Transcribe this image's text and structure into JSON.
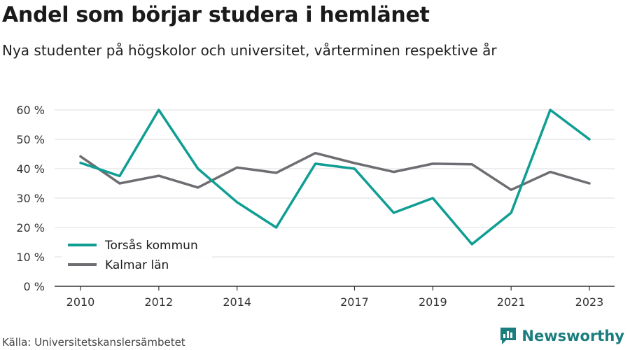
{
  "header": {
    "title": "Andel som börjar studera i hemlänet",
    "subtitle": "Nya studenter på högskolor och universitet, vårterminen respektive år"
  },
  "footer": {
    "source": "Källa: Universitetskanslersämbetet",
    "brand": "Newsworthy"
  },
  "colors": {
    "torsas": "#0f9e93",
    "kalmar": "#6e6d72",
    "grid": "#dddddd",
    "axis": "#333333"
  },
  "chart_data": {
    "type": "line",
    "title": "Andel som börjar studera i hemlänet",
    "subtitle": "Nya studenter på högskolor och universitet, vårterminen respektive år",
    "xlabel": "",
    "ylabel": "",
    "x": [
      2010,
      2011,
      2012,
      2013,
      2014,
      2015,
      2016,
      2017,
      2018,
      2019,
      2020,
      2021,
      2022,
      2023
    ],
    "xticks": [
      2010,
      2012,
      2014,
      2017,
      2019,
      2021,
      2023
    ],
    "yticks": [
      0,
      10,
      20,
      30,
      40,
      50,
      60
    ],
    "ytick_labels": [
      "0 %",
      "10 %",
      "20 %",
      "30 %",
      "40 %",
      "50 %",
      "60 %"
    ],
    "ylim": [
      0,
      60
    ],
    "grid": true,
    "legend_position": "bottom-left",
    "series": [
      {
        "name": "Torsås kommun",
        "color": "#0f9e93",
        "values": [
          42,
          37.5,
          60,
          40,
          28.6,
          20,
          41.7,
          40,
          25,
          30,
          14.3,
          25,
          60,
          50
        ]
      },
      {
        "name": "Kalmar län",
        "color": "#6e6d72",
        "values": [
          44.2,
          35,
          37.6,
          33.6,
          40.4,
          38.6,
          45.3,
          41.9,
          38.9,
          41.7,
          41.5,
          32.8,
          38.9,
          35
        ]
      }
    ]
  }
}
